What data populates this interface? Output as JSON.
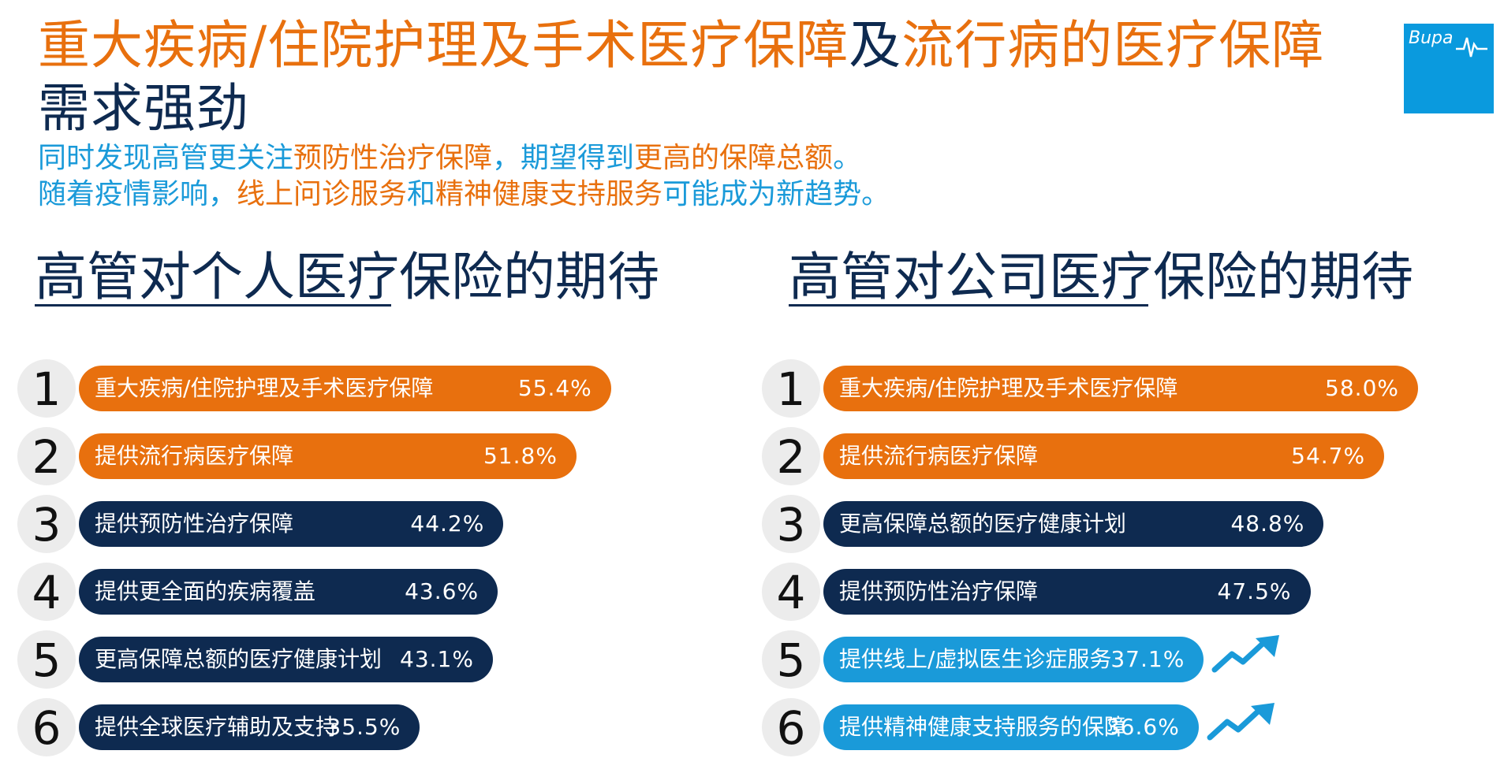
{
  "header": {
    "title_line1_part1": "重大疾病/住院护理及手术医疗保障",
    "title_line1_part2": "及",
    "title_line1_part3": "流行病的医疗保障",
    "title_line2": "需求强劲",
    "subtitle_line1_a": "同时发现高管更关注",
    "subtitle_line1_b": "预防性治疗保障",
    "subtitle_line1_c": "，期望得到",
    "subtitle_line1_d": "更高的保障总额",
    "subtitle_line1_e": "。",
    "subtitle_line2_a": "随着疫情影响，",
    "subtitle_line2_b": "线上问诊服务",
    "subtitle_line2_c": "和",
    "subtitle_line2_d": "精神健康支持服务",
    "subtitle_line2_e": "可能成为新趋势。"
  },
  "logo": {
    "text": "Bupa"
  },
  "colors": {
    "orange": "#e8700e",
    "navy": "#0e2a50",
    "light_blue": "#1a9ad9",
    "logo_blue": "#0a9ade"
  },
  "chart_data": [
    {
      "type": "bar",
      "title": "高管对个人医疗保险的期待",
      "ranks": [
        "1",
        "2",
        "3",
        "4",
        "5",
        "6"
      ],
      "categories": [
        "重大疾病/住院护理及手术医疗保障",
        "提供流行病医疗保障",
        "提供预防性治疗保障",
        "提供更全面的疾病覆盖",
        "更高保障总额的医疗健康计划",
        "提供全球医疗辅助及支持"
      ],
      "values": [
        55.4,
        51.8,
        44.2,
        43.6,
        43.1,
        35.5
      ],
      "value_labels": [
        "55.4%",
        "51.8%",
        "44.2%",
        "43.6%",
        "43.1%",
        "35.5%"
      ],
      "bar_colors": [
        "#e8700e",
        "#e8700e",
        "#0e2a50",
        "#0e2a50",
        "#0e2a50",
        "#0e2a50"
      ],
      "trend_icons": [
        false,
        false,
        false,
        false,
        false,
        false
      ]
    },
    {
      "type": "bar",
      "title": "高管对公司医疗保险的期待",
      "ranks": [
        "1",
        "2",
        "3",
        "4",
        "5",
        "6"
      ],
      "categories": [
        "重大疾病/住院护理及手术医疗保障",
        "提供流行病医疗保障",
        "更高保障总额的医疗健康计划",
        "提供预防性治疗保障",
        "提供线上/虚拟医生诊症服务",
        "提供精神健康支持服务的保障"
      ],
      "values": [
        58.0,
        54.7,
        48.8,
        47.5,
        37.1,
        36.6
      ],
      "value_labels": [
        "58.0%",
        "54.7%",
        "48.8%",
        "47.5%",
        "37.1%",
        "36.6%"
      ],
      "bar_colors": [
        "#e8700e",
        "#e8700e",
        "#0e2a50",
        "#0e2a50",
        "#1a9ad9",
        "#1a9ad9"
      ],
      "trend_icons": [
        false,
        false,
        false,
        false,
        true,
        true
      ]
    }
  ]
}
